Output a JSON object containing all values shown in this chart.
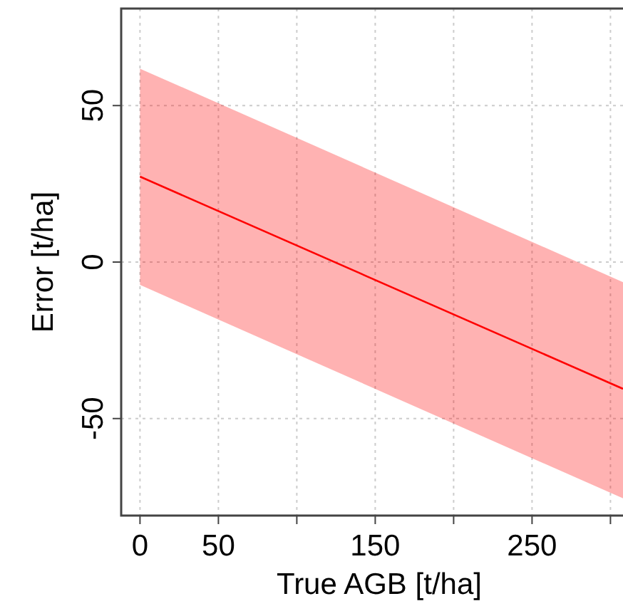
{
  "chart_data": {
    "type": "line",
    "xlabel": "True AGB [t/ha]",
    "ylabel": "Error [t/ha]",
    "series": [
      {
        "color": "#ff0000",
        "x": [
          0,
          308
        ],
        "values": [
          27.3,
          -40.5
        ],
        "lower": [
          -7.3,
          -75.5
        ],
        "upper": [
          61.8,
          -6.4
        ]
      }
    ],
    "xlim": [
      -12,
      308
    ],
    "ylim": [
      -81,
      81
    ],
    "xticks": [
      0,
      50,
      {
        "value": 100,
        "label": null
      },
      150,
      {
        "value": 200,
        "label": null
      },
      250,
      {
        "value": 300,
        "label": null
      }
    ],
    "yticks": [
      -50,
      0,
      50
    ],
    "grid": true,
    "line_style": "solid",
    "marker": "none"
  }
}
